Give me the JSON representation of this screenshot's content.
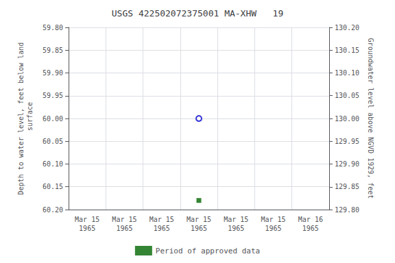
{
  "chart_data": {
    "type": "scatter",
    "title": "USGS 422502072375001 MA-XHW   19",
    "categories": [
      "Mar 15\n1965",
      "Mar 15\n1965",
      "Mar 15\n1965",
      "Mar 15\n1965",
      "Mar 15\n1965",
      "Mar 15\n1965",
      "Mar 16\n1965"
    ],
    "ylabel": "Depth to water level, feet below land\n surface",
    "y2label": "Groundwater level above NGVD 1929, feet",
    "ylim": [
      60.2,
      59.8
    ],
    "yticks": [
      {
        "value": 59.8,
        "label": "59.80"
      },
      {
        "value": 59.85,
        "label": "59.85"
      },
      {
        "value": 59.9,
        "label": "59.90"
      },
      {
        "value": 59.95,
        "label": "59.95"
      },
      {
        "value": 60.0,
        "label": "60.00"
      },
      {
        "value": 60.05,
        "label": "60.05"
      },
      {
        "value": 60.1,
        "label": "60.10"
      },
      {
        "value": 60.15,
        "label": "60.15"
      },
      {
        "value": 60.2,
        "label": "60.20"
      }
    ],
    "y2lim": [
      129.8,
      130.2
    ],
    "y2ticks": [
      {
        "value": 130.2,
        "label": "130.20"
      },
      {
        "value": 130.15,
        "label": "130.15"
      },
      {
        "value": 130.1,
        "label": "130.10"
      },
      {
        "value": 130.05,
        "label": "130.05"
      },
      {
        "value": 130.0,
        "label": "130.00"
      },
      {
        "value": 129.95,
        "label": "129.95"
      },
      {
        "value": 129.9,
        "label": "129.90"
      },
      {
        "value": 129.85,
        "label": "129.85"
      },
      {
        "value": 129.8,
        "label": "129.80"
      }
    ],
    "grid": true,
    "legend": "bottom",
    "series": [
      {
        "color": "#0000cc",
        "marker": "open_circle",
        "values": [
          null,
          null,
          null,
          60.0,
          null,
          null,
          null
        ]
      },
      {
        "name": "Period of approved data",
        "color": "#006600",
        "marker": "square",
        "values": [
          null,
          null,
          null,
          60.18,
          null,
          null,
          null
        ]
      }
    ]
  }
}
